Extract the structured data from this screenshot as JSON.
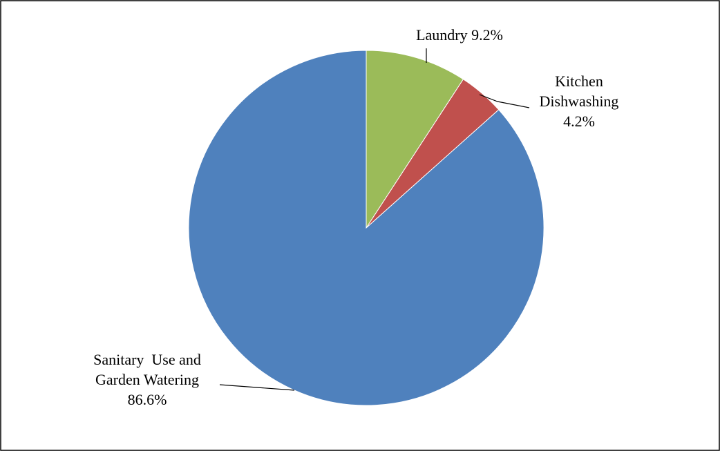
{
  "chart_data": {
    "type": "pie",
    "title": "",
    "start_angle_deg": 0,
    "direction": "clockwise",
    "slices": [
      {
        "label_lines": [
          "Laundry 9.2%"
        ],
        "value": 9.2,
        "color": "#9BBB59"
      },
      {
        "label_lines": [
          "Kitchen",
          "Dishwashing",
          "4.2%"
        ],
        "value": 4.2,
        "color": "#C0504D"
      },
      {
        "label_lines": [
          "Sanitary  Use and",
          "Garden Watering",
          "86.6%"
        ],
        "value": 86.6,
        "color": "#4F81BD"
      }
    ],
    "legend": "none",
    "data_labels": "outside-with-leader-lines"
  }
}
